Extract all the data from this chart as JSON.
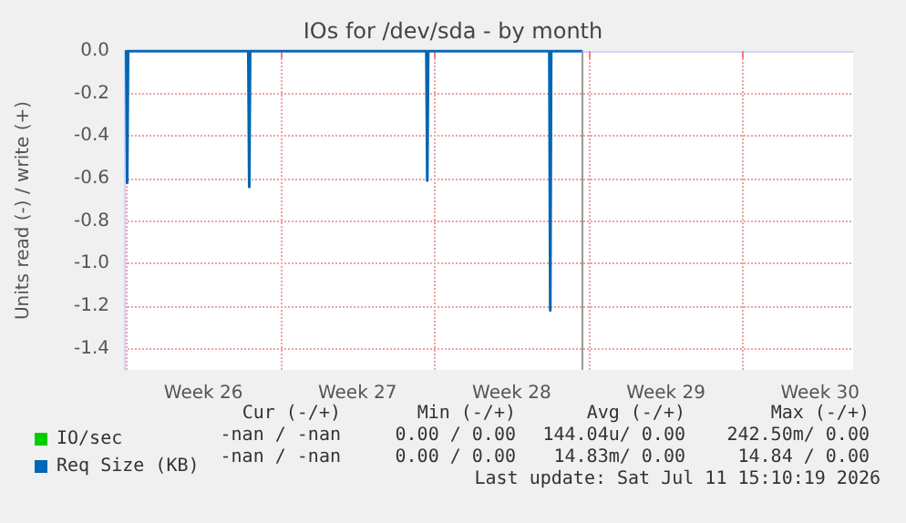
{
  "chart_data": {
    "type": "line",
    "title": "IOs for /dev/sda - by month",
    "ylabel": "Units read (-) / write (+)",
    "series": [
      {
        "name": "IO/sec",
        "color": "#00cc00"
      },
      {
        "name": "Req Size (KB)",
        "color": "#0066b3",
        "x": [
          "2026-06-22T00:00",
          "2026-06-22T01:00",
          "2026-06-22T02:00",
          "2026-06-27T13:00",
          "2026-06-27T14:00",
          "2026-06-27T15:00",
          "2026-07-05T15:00",
          "2026-07-05T16:00",
          "2026-07-05T17:00",
          "2026-07-11T05:00",
          "2026-07-11T06:00",
          "2026-07-11T07:00",
          "2026-07-12T16:00"
        ],
        "values": [
          0,
          -0.62,
          0,
          0,
          -0.64,
          0,
          0,
          -0.61,
          0,
          0,
          -1.22,
          0,
          0
        ]
      }
    ],
    "xlim": [
      "2026-06-21T21:30",
      "2026-07-25T00:00"
    ],
    "xticks": [
      {
        "value": "2026-06-22T00:00",
        "label": null
      },
      {
        "value": "2026-06-25T12:00",
        "label": "Week 26"
      },
      {
        "value": "2026-06-29T00:00",
        "label": null
      },
      {
        "value": "2026-07-02T12:00",
        "label": "Week 27"
      },
      {
        "value": "2026-07-06T00:00",
        "label": null
      },
      {
        "value": "2026-07-09T12:00",
        "label": "Week 28"
      },
      {
        "value": "2026-07-13T00:00",
        "label": null
      },
      {
        "value": "2026-07-16T12:00",
        "label": "Week 29"
      },
      {
        "value": "2026-07-20T00:00",
        "label": null
      },
      {
        "value": "2026-07-23T12:00",
        "label": "Week 30"
      }
    ],
    "ylim": [
      -1.5,
      0
    ],
    "yticks": [
      {
        "value": 0,
        "label": "0.0"
      },
      {
        "value": -0.2,
        "label": "-0.2"
      },
      {
        "value": -0.4,
        "label": "-0.4"
      },
      {
        "value": -0.6,
        "label": "-0.6"
      },
      {
        "value": -0.8,
        "label": "-0.8"
      },
      {
        "value": -1,
        "label": "-1.0"
      },
      {
        "value": -1.2,
        "label": "-1.2"
      },
      {
        "value": -1.4,
        "label": "-1.4"
      }
    ],
    "ref_lines": [
      {
        "axis": "x",
        "value": "2026-07-12T16:00",
        "label": null,
        "color": "#999999"
      }
    ],
    "grid": true,
    "legend": "bottom left",
    "marker": "none",
    "line_style": "solid",
    "annotations": [
      "Cur (-/+)",
      "Min (-/+)",
      "Avg (-/+)",
      "Max (-/+)",
      "-nan / -nan",
      "0.00 / 0.00",
      "144.04u/ 0.00",
      "242.50m/ 0.00",
      "-nan / -nan",
      "0.00 / 0.00",
      "14.83m/ 0.00",
      "14.84 / 0.00",
      "Last update: Sat Jul 11 15:10:19 2026"
    ]
  }
}
